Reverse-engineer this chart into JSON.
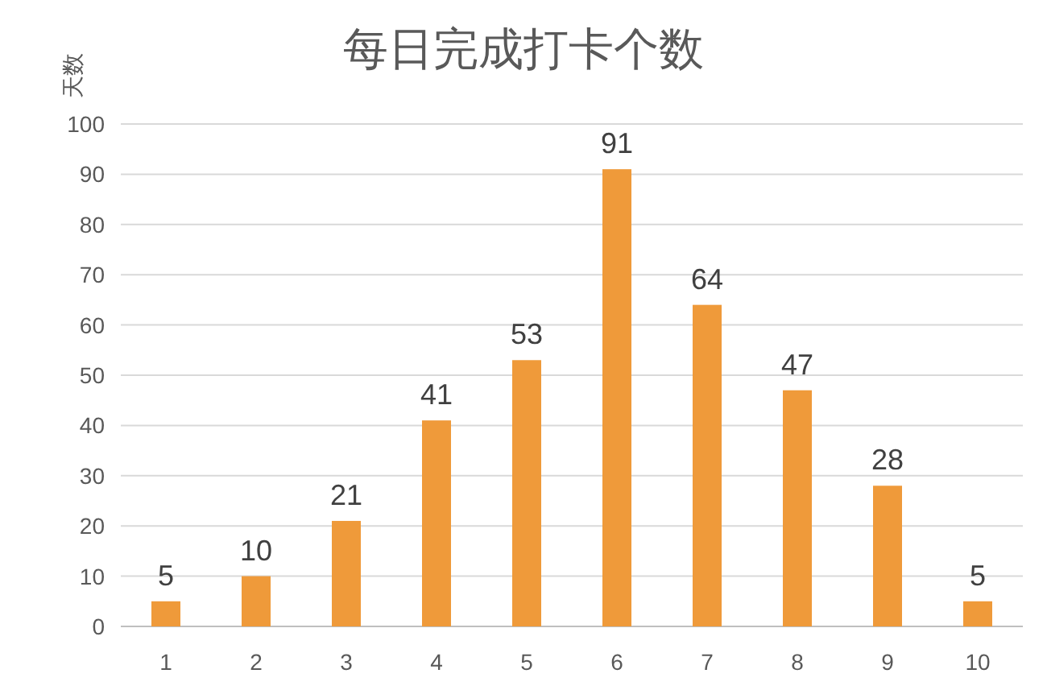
{
  "chart_data": {
    "type": "bar",
    "title": "每日完成打卡个数",
    "ylabel": "天数",
    "categories": [
      "1",
      "2",
      "3",
      "4",
      "5",
      "6",
      "7",
      "8",
      "9",
      "10"
    ],
    "values": [
      5,
      10,
      21,
      41,
      53,
      91,
      64,
      47,
      28,
      5
    ],
    "color": "#ef9a3a",
    "ylim": [
      0,
      100
    ],
    "yticks": [
      0,
      10,
      20,
      30,
      40,
      50,
      60,
      70,
      80,
      90,
      100
    ],
    "grid": "y",
    "data_labels": true
  }
}
